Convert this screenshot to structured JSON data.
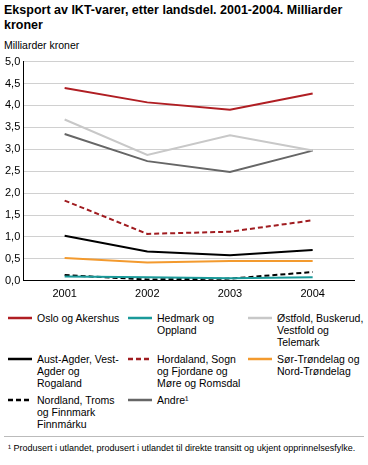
{
  "chart_data": {
    "type": "line",
    "title": "Eksport av IKT-varer, etter landsdel. 2001-2004. Milliarder kroner",
    "y_label": "Milliarder kroner",
    "note": "¹ Produsert i utlandet, produsert i utlandet til direkte transitt og ukjent opprinnelsesfylke.",
    "categories": [
      "2001",
      "2002",
      "2003",
      "2004"
    ],
    "series": [
      {
        "name": "Oslo og Akershus",
        "color": "#b01e23",
        "line_style": "solid",
        "values": [
          4.4,
          4.07,
          3.9,
          4.27
        ]
      },
      {
        "name": "Hedmark og Oppland",
        "color": "#1a9a9a",
        "line_style": "solid",
        "values": [
          0.1,
          0.08,
          0.06,
          0.08
        ]
      },
      {
        "name": "Østfold, Buskerud, Vestfold og Telemark",
        "color": "#c8c8c8",
        "line_style": "solid",
        "values": [
          3.68,
          2.87,
          3.32,
          2.97
        ]
      },
      {
        "name": "Aust-Agder, Vest-Agder og Rogaland",
        "color": "#000000",
        "line_style": "solid",
        "values": [
          1.03,
          0.67,
          0.58,
          0.7
        ]
      },
      {
        "name": "Hordaland, Sogn og Fjordane og Møre og Romsdal",
        "color": "#a01c20",
        "line_style": "dashed",
        "values": [
          1.83,
          1.07,
          1.12,
          1.38
        ]
      },
      {
        "name": "Sør-Trøndelag og Nord-Trøndelag",
        "color": "#f39a2e",
        "line_style": "solid",
        "values": [
          0.52,
          0.42,
          0.45,
          0.45
        ]
      },
      {
        "name": "Nordland, Troms og Finnmark Finnmárku",
        "color": "#000000",
        "line_style": "dashed",
        "values": [
          0.13,
          0.03,
          0.05,
          0.2
        ]
      },
      {
        "name": "Andre¹",
        "color": "#666666",
        "line_style": "solid",
        "values": [
          3.35,
          2.73,
          2.48,
          2.97
        ]
      }
    ],
    "ylim": [
      0,
      5
    ],
    "yticks": [
      {
        "value": 0,
        "label": "0,0"
      },
      {
        "value": 0.5,
        "label": "0,5"
      },
      {
        "value": 1,
        "label": "1,0"
      },
      {
        "value": 1.5,
        "label": "1,5"
      },
      {
        "value": 2,
        "label": "2,0"
      },
      {
        "value": 2.5,
        "label": "2,5"
      },
      {
        "value": 3,
        "label": "3,0"
      },
      {
        "value": 3.5,
        "label": "3,5"
      },
      {
        "value": 4,
        "label": "4,0"
      },
      {
        "value": 4.5,
        "label": "4,5"
      },
      {
        "value": 5,
        "label": "5,0"
      }
    ],
    "grid": true,
    "legend": "bottom"
  }
}
